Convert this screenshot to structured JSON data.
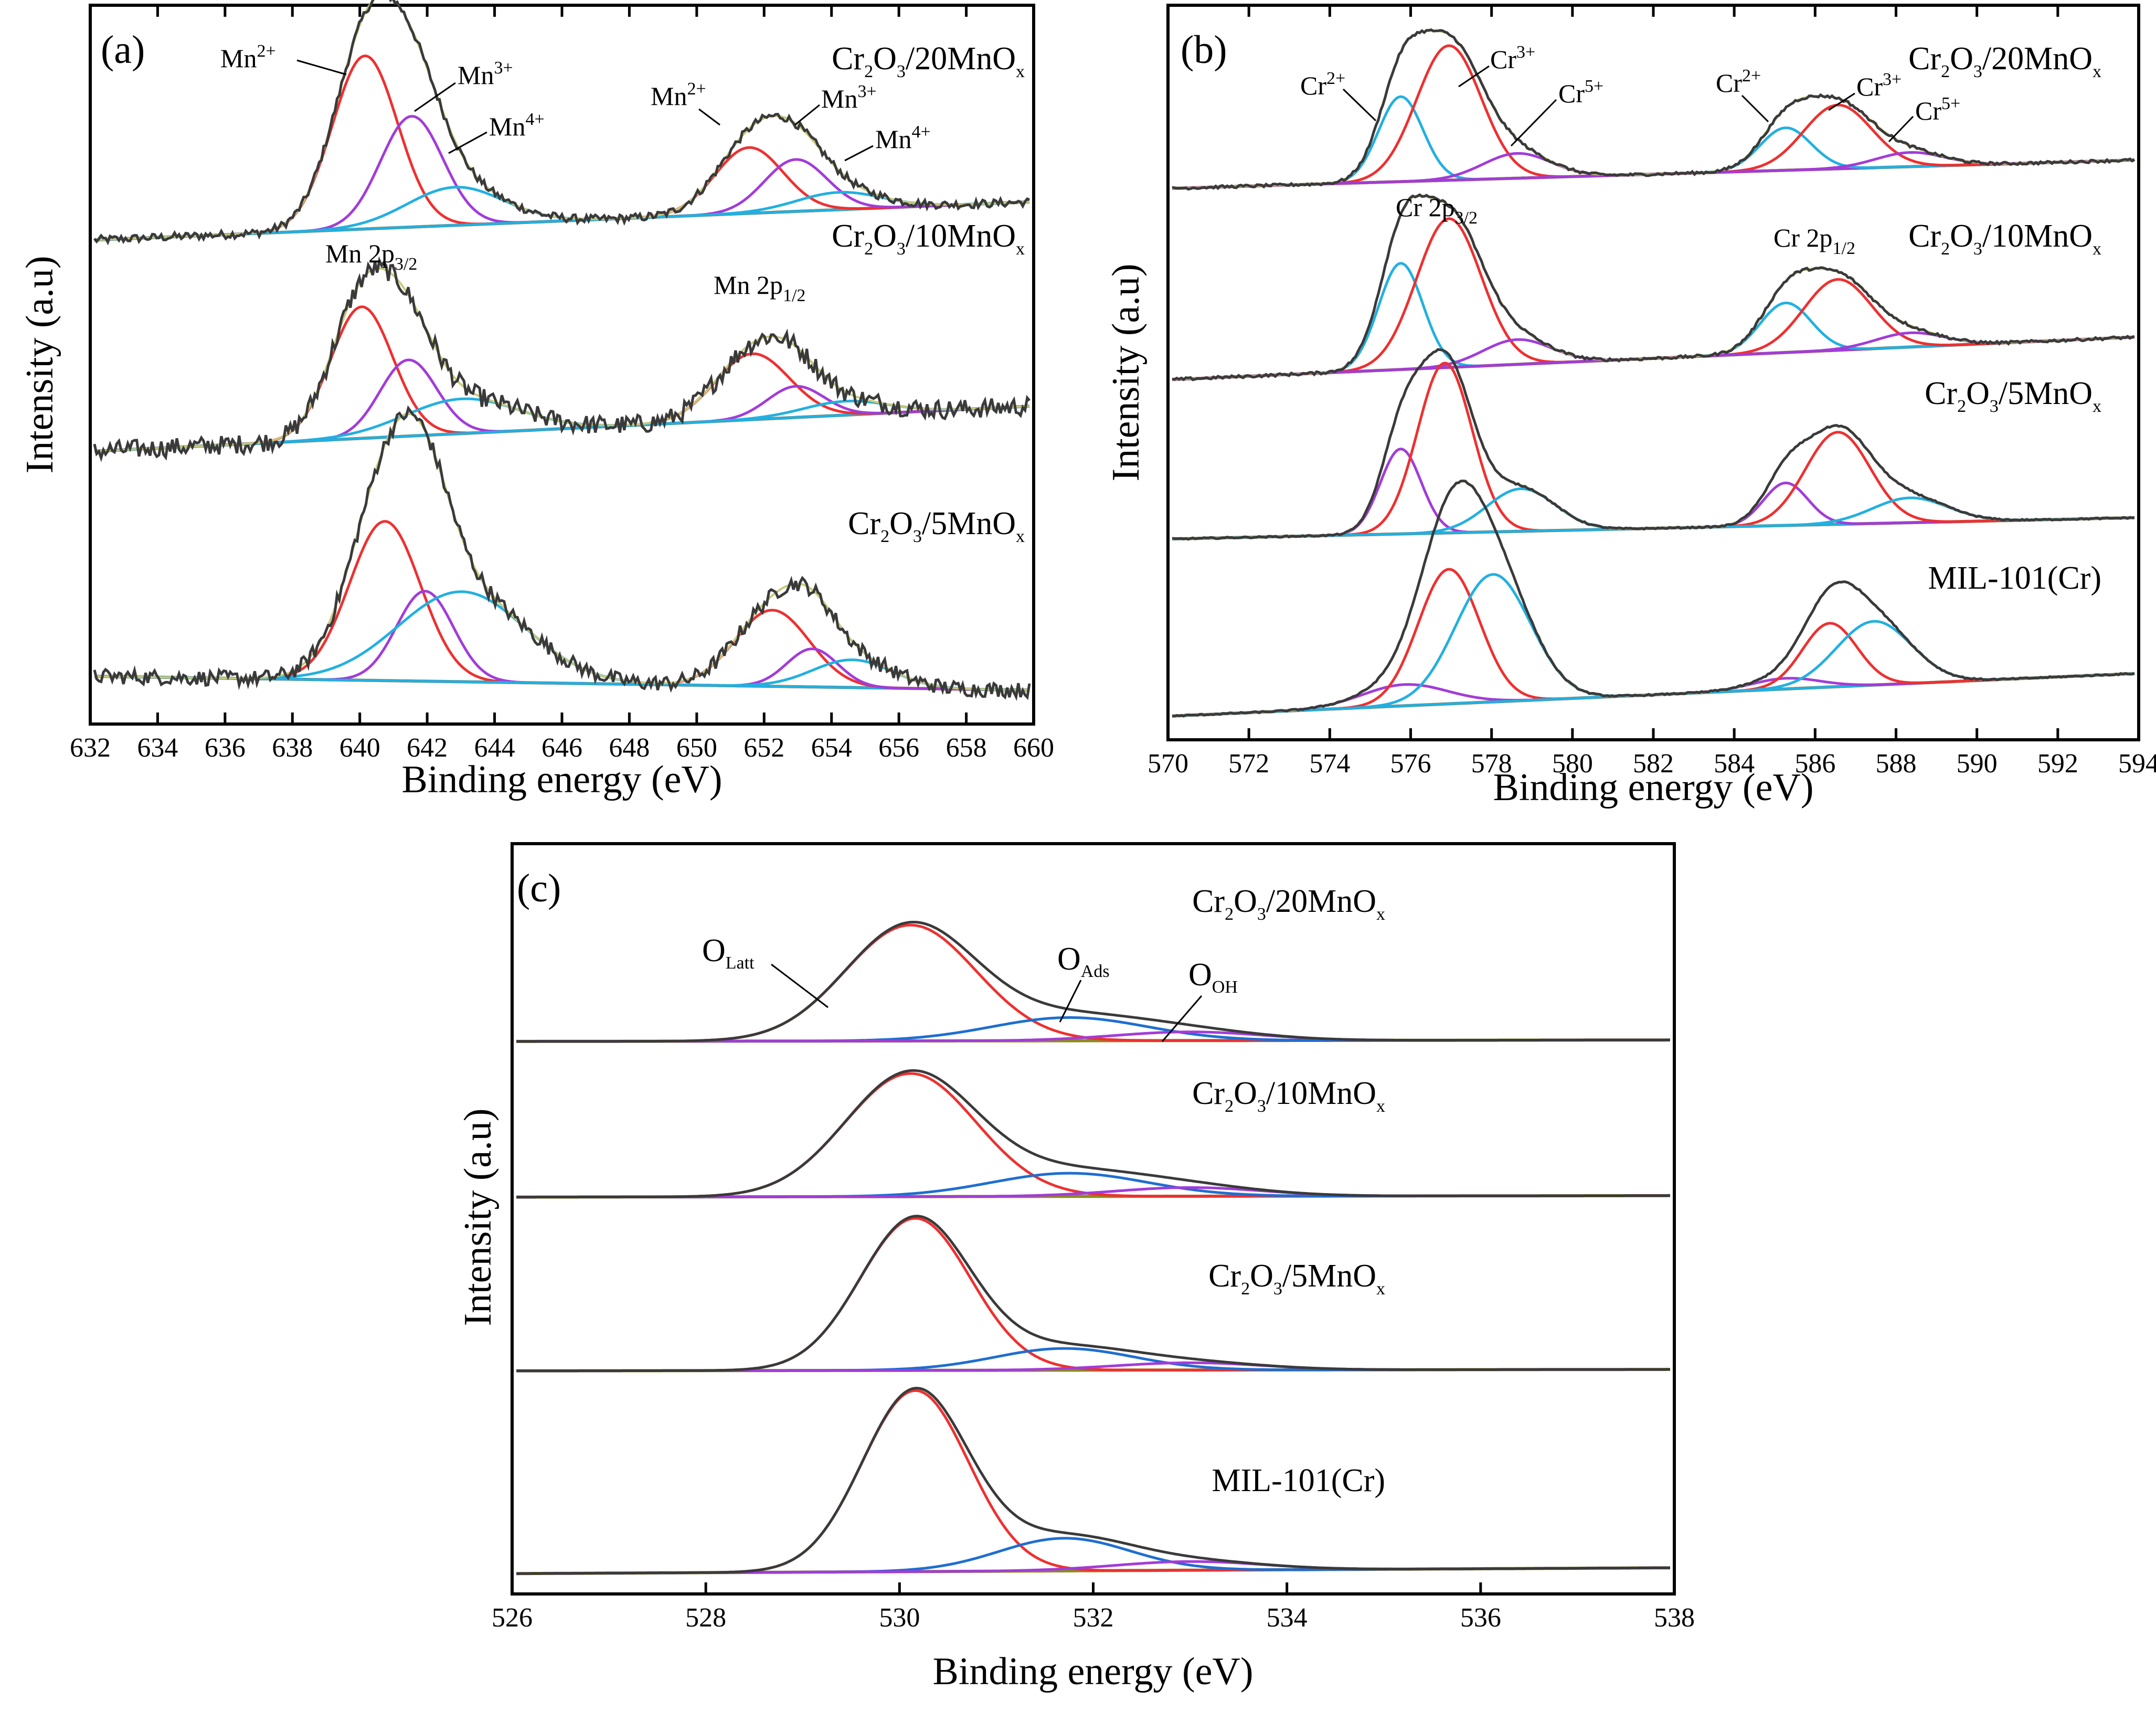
{
  "colors": {
    "raw": "#3a3a3a",
    "envelope": "#c8c87a",
    "background": "#8c8c1e",
    "red": "#ee3030",
    "purple": "#a23cd8",
    "cyan": "#22b0e0",
    "blue": "#1e6ed0"
  },
  "chart_data": [
    {
      "panel": "(a)",
      "type": "line",
      "title": "",
      "xlabel": "Binding energy (eV)",
      "ylabel": "Intensity (a.u)",
      "xlim": [
        632,
        660
      ],
      "ylim": [
        0,
        1
      ],
      "x_ticks": [
        "632",
        "634",
        "636",
        "638",
        "640",
        "642",
        "644",
        "646",
        "648",
        "650",
        "652",
        "654",
        "656",
        "658",
        "660"
      ],
      "series": [
        {
          "name": "Cr2O3/20MnOx",
          "label": [
            "Cr",
            "2",
            "O",
            "3",
            "/20MnO",
            "x"
          ],
          "offset": 0.68,
          "bg_start": 0.0,
          "bg_end": 0.055,
          "noise": 0.006,
          "peaks": [
            {
              "state": "Mn2+",
              "center": 640.1,
              "fwhm": 2.3,
              "height": 0.25,
              "color": "red"
            },
            {
              "state": "Mn3+",
              "center": 641.5,
              "fwhm": 2.2,
              "height": 0.16,
              "color": "purple"
            },
            {
              "state": "Mn4+",
              "center": 642.8,
              "fwhm": 3.4,
              "height": 0.055,
              "color": "cyan"
            },
            {
              "state": "Mn2+",
              "center": 651.6,
              "fwhm": 2.4,
              "height": 0.095,
              "color": "red"
            },
            {
              "state": "Mn3+",
              "center": 653.0,
              "fwhm": 2.2,
              "height": 0.075,
              "color": "purple"
            },
            {
              "state": "Mn4+",
              "center": 654.3,
              "fwhm": 3.0,
              "height": 0.025,
              "color": "cyan"
            }
          ]
        },
        {
          "name": "Cr2O3/10MnOx",
          "label": [
            "Cr",
            "2",
            "O",
            "3",
            "/10MnO",
            "x"
          ],
          "offset": 0.375,
          "bg_start": 0.0,
          "bg_end": 0.065,
          "noise": 0.014,
          "peaks": [
            {
              "state": "Mn2+",
              "center": 640.0,
              "fwhm": 2.2,
              "height": 0.19,
              "color": "red"
            },
            {
              "state": "Mn3+",
              "center": 641.4,
              "fwhm": 2.0,
              "height": 0.11,
              "color": "purple"
            },
            {
              "state": "Mn4+",
              "center": 643.0,
              "fwhm": 4.0,
              "height": 0.05,
              "color": "cyan"
            },
            {
              "state": "Mn2+",
              "center": 651.7,
              "fwhm": 2.6,
              "height": 0.095,
              "color": "red"
            },
            {
              "state": "Mn3+",
              "center": 653.0,
              "fwhm": 2.0,
              "height": 0.045,
              "color": "purple"
            },
            {
              "state": "Mn4+",
              "center": 654.5,
              "fwhm": 3.0,
              "height": 0.02,
              "color": "cyan"
            }
          ]
        },
        {
          "name": "Cr2O3/5MnOx",
          "label": [
            "Cr",
            "2",
            "O",
            "3",
            "/5MnO",
            "x"
          ],
          "offset": 0.05,
          "bg_start": 0.0,
          "bg_end": -0.02,
          "noise": 0.011,
          "peaks": [
            {
              "state": "Mn2+",
              "center": 640.7,
              "fwhm": 2.5,
              "height": 0.23,
              "color": "red"
            },
            {
              "state": "Mn3+",
              "center": 641.9,
              "fwhm": 2.0,
              "height": 0.13,
              "color": "purple"
            },
            {
              "state": "Mn4+",
              "center": 643.0,
              "fwhm": 4.5,
              "height": 0.13,
              "color": "cyan"
            },
            {
              "state": "Mn2+",
              "center": 652.3,
              "fwhm": 2.6,
              "height": 0.11,
              "color": "red"
            },
            {
              "state": "Mn3+",
              "center": 653.5,
              "fwhm": 1.8,
              "height": 0.055,
              "color": "purple"
            },
            {
              "state": "Mn4+",
              "center": 654.7,
              "fwhm": 2.8,
              "height": 0.04,
              "color": "cyan"
            }
          ]
        }
      ],
      "annotations": {
        "mn2_a": "Mn",
        "mn2_a_sup": "2+",
        "mn3_a": "Mn",
        "mn3_a_sup": "3+",
        "mn4_a": "Mn",
        "mn4_a_sup": "4+",
        "mn2_b": "Mn",
        "mn2_b_sup": "2+",
        "mn3_b": "Mn",
        "mn3_b_sup": "3+",
        "mn4_b": "Mn",
        "mn4_b_sup": "4+",
        "mn2p32": "Mn 2p",
        "mn2p32_sub": "3/2",
        "mn2p12": "Mn 2p",
        "mn2p12_sub": "1/2"
      }
    },
    {
      "panel": "(b)",
      "type": "line",
      "title": "",
      "xlabel": "Binding energy (eV)",
      "ylabel": "Intensity (a.u)",
      "xlim": [
        570,
        594
      ],
      "ylim": [
        0,
        1
      ],
      "x_ticks": [
        "570",
        "572",
        "574",
        "576",
        "578",
        "580",
        "582",
        "584",
        "586",
        "588",
        "590",
        "592",
        "594"
      ],
      "series": [
        {
          "name": "Cr2O3/20MnOx",
          "label": [
            "Cr",
            "2",
            "O",
            "3",
            "/20MnO",
            "x"
          ],
          "offset": 0.76,
          "bg_start": 0.0,
          "bg_end": 0.04,
          "noise": 0.002,
          "peaks": [
            {
              "state": "Cr2+",
              "center": 575.7,
              "fwhm": 1.3,
              "height": 0.12,
              "color": "cyan"
            },
            {
              "state": "Cr3+",
              "center": 576.9,
              "fwhm": 1.9,
              "height": 0.19,
              "color": "red"
            },
            {
              "state": "Cr5+",
              "center": 578.6,
              "fwhm": 2.0,
              "height": 0.035,
              "color": "purple"
            },
            {
              "state": "Cr2+",
              "center": 585.3,
              "fwhm": 1.5,
              "height": 0.06,
              "color": "cyan"
            },
            {
              "state": "Cr3+",
              "center": 586.6,
              "fwhm": 2.0,
              "height": 0.09,
              "color": "red"
            },
            {
              "state": "Cr5+",
              "center": 588.4,
              "fwhm": 2.0,
              "height": 0.02,
              "color": "purple"
            }
          ]
        },
        {
          "name": "Cr2O3/10MnOx",
          "label": [
            "Cr",
            "2",
            "O",
            "3",
            "/10MnO",
            "x"
          ],
          "offset": 0.49,
          "bg_start": 0.0,
          "bg_end": 0.06,
          "noise": 0.002,
          "peaks": [
            {
              "state": "Cr2+",
              "center": 575.7,
              "fwhm": 1.3,
              "height": 0.15,
              "color": "cyan"
            },
            {
              "state": "Cr3+",
              "center": 576.9,
              "fwhm": 1.9,
              "height": 0.21,
              "color": "red"
            },
            {
              "state": "Cr5+",
              "center": 578.6,
              "fwhm": 2.0,
              "height": 0.035,
              "color": "purple"
            },
            {
              "state": "Cr2+",
              "center": 585.3,
              "fwhm": 1.5,
              "height": 0.07,
              "color": "cyan"
            },
            {
              "state": "Cr3+",
              "center": 586.6,
              "fwhm": 2.0,
              "height": 0.1,
              "color": "red"
            },
            {
              "state": "Cr5+",
              "center": 588.4,
              "fwhm": 2.0,
              "height": 0.02,
              "color": "purple"
            }
          ]
        },
        {
          "name": "Cr2O3/5MnOx",
          "label": [
            "Cr",
            "2",
            "O",
            "3",
            "/5MnO",
            "x"
          ],
          "offset": 0.265,
          "bg_start": 0.0,
          "bg_end": 0.03,
          "noise": 0.001,
          "peaks": [
            {
              "state": "Cr2+",
              "center": 575.7,
              "fwhm": 1.2,
              "height": 0.12,
              "color": "purple"
            },
            {
              "state": "Cr3+",
              "center": 576.8,
              "fwhm": 1.6,
              "height": 0.24,
              "color": "red"
            },
            {
              "state": "Cr5+",
              "center": 578.7,
              "fwhm": 2.0,
              "height": 0.06,
              "color": "cyan"
            },
            {
              "state": "Cr2+",
              "center": 585.3,
              "fwhm": 1.3,
              "height": 0.06,
              "color": "purple"
            },
            {
              "state": "Cr3+",
              "center": 586.6,
              "fwhm": 1.9,
              "height": 0.13,
              "color": "red"
            },
            {
              "state": "Cr5+",
              "center": 588.4,
              "fwhm": 2.2,
              "height": 0.035,
              "color": "cyan"
            }
          ]
        },
        {
          "name": "MIL-101(Cr)",
          "label": [
            "MIL-101(Cr)",
            "",
            "",
            "",
            "",
            ""
          ],
          "offset": 0.015,
          "bg_start": 0.0,
          "bg_end": 0.06,
          "noise": 0.001,
          "peaks": [
            {
              "state": "Cr2+",
              "center": 575.8,
              "fwhm": 2.5,
              "height": 0.03,
              "color": "purple"
            },
            {
              "state": "Cr3+",
              "center": 576.9,
              "fwhm": 1.8,
              "height": 0.19,
              "color": "red"
            },
            {
              "state": "Cr5+",
              "center": 578.0,
              "fwhm": 2.2,
              "height": 0.18,
              "color": "cyan"
            },
            {
              "state": "Cr2+",
              "center": 585.3,
              "fwhm": 2.0,
              "height": 0.015,
              "color": "purple"
            },
            {
              "state": "Cr3+",
              "center": 586.4,
              "fwhm": 1.6,
              "height": 0.09,
              "color": "red"
            },
            {
              "state": "Cr5+",
              "center": 587.5,
              "fwhm": 2.2,
              "height": 0.09,
              "color": "cyan"
            }
          ]
        }
      ],
      "annotations": {
        "cr2_a": "Cr",
        "cr2_a_sup": "2+",
        "cr3_a": "Cr",
        "cr3_a_sup": "3+",
        "cr5_a": "Cr",
        "cr5_a_sup": "5+",
        "cr2_b": "Cr",
        "cr2_b_sup": "2+",
        "cr3_b": "Cr",
        "cr3_b_sup": "3+",
        "cr5_b": "Cr",
        "cr5_b_sup": "5+",
        "cr2p32": "Cr 2p",
        "cr2p32_sub": "3/2",
        "cr2p12": "Cr 2p",
        "cr2p12_sub": "1/2"
      }
    },
    {
      "panel": "(c)",
      "type": "line",
      "title": "",
      "xlabel": "Binding energy (eV)",
      "ylabel": "Intensity (a.u)",
      "xlim": [
        526,
        538
      ],
      "ylim": [
        0,
        1
      ],
      "x_ticks": [
        "526",
        "528",
        "530",
        "532",
        "534",
        "536",
        "538"
      ],
      "series": [
        {
          "name": "Cr2O3/20MnOx",
          "label": [
            "Cr",
            "2",
            "O",
            "3",
            "/20MnO",
            "x"
          ],
          "offset": 0.745,
          "bg_start": 0.0,
          "bg_end": 0.002,
          "noise": 0.0,
          "peaks": [
            {
              "state": "OLatt",
              "center": 530.1,
              "fwhm": 1.6,
              "height": 0.16,
              "color": "red"
            },
            {
              "state": "OAds",
              "center": 531.75,
              "fwhm": 1.9,
              "height": 0.032,
              "color": "blue"
            },
            {
              "state": "OOH",
              "center": 533.0,
              "fwhm": 1.8,
              "height": 0.012,
              "color": "purple"
            }
          ]
        },
        {
          "name": "Cr2O3/10MnOx",
          "label": [
            "Cr",
            "2",
            "O",
            "3",
            "/10MnO",
            "x"
          ],
          "offset": 0.53,
          "bg_start": 0.0,
          "bg_end": 0.002,
          "noise": 0.0,
          "peaks": [
            {
              "state": "OLatt",
              "center": 530.1,
              "fwhm": 1.6,
              "height": 0.17,
              "color": "red"
            },
            {
              "state": "OAds",
              "center": 531.75,
              "fwhm": 1.9,
              "height": 0.032,
              "color": "blue"
            },
            {
              "state": "OOH",
              "center": 533.0,
              "fwhm": 1.8,
              "height": 0.012,
              "color": "purple"
            }
          ]
        },
        {
          "name": "Cr2O3/5MnOx",
          "label": [
            "Cr",
            "2",
            "O",
            "3",
            "/5MnO",
            "x"
          ],
          "offset": 0.29,
          "bg_start": 0.0,
          "bg_end": 0.002,
          "noise": 0.0,
          "peaks": [
            {
              "state": "OLatt",
              "center": 530.15,
              "fwhm": 1.35,
              "height": 0.21,
              "color": "red"
            },
            {
              "state": "OAds",
              "center": 531.7,
              "fwhm": 1.7,
              "height": 0.03,
              "color": "blue"
            },
            {
              "state": "OOH",
              "center": 533.0,
              "fwhm": 1.8,
              "height": 0.01,
              "color": "purple"
            }
          ]
        },
        {
          "name": "MIL-101(Cr)",
          "label": [
            "MIL-101(Cr)",
            "",
            "",
            "",
            "",
            ""
          ],
          "offset": 0.01,
          "bg_start": 0.0,
          "bg_end": 0.008,
          "noise": 0.0,
          "peaks": [
            {
              "state": "OLatt",
              "center": 530.15,
              "fwhm": 1.3,
              "height": 0.25,
              "color": "red"
            },
            {
              "state": "OAds",
              "center": 531.7,
              "fwhm": 1.6,
              "height": 0.045,
              "color": "blue"
            },
            {
              "state": "OOH",
              "center": 533.0,
              "fwhm": 1.8,
              "height": 0.012,
              "color": "purple"
            }
          ]
        }
      ],
      "annotations": {
        "olatt": "O",
        "olatt_sub": "Latt",
        "oads": "O",
        "oads_sub": "Ads",
        "ooh": "O",
        "ooh_sub": "OH"
      }
    }
  ]
}
